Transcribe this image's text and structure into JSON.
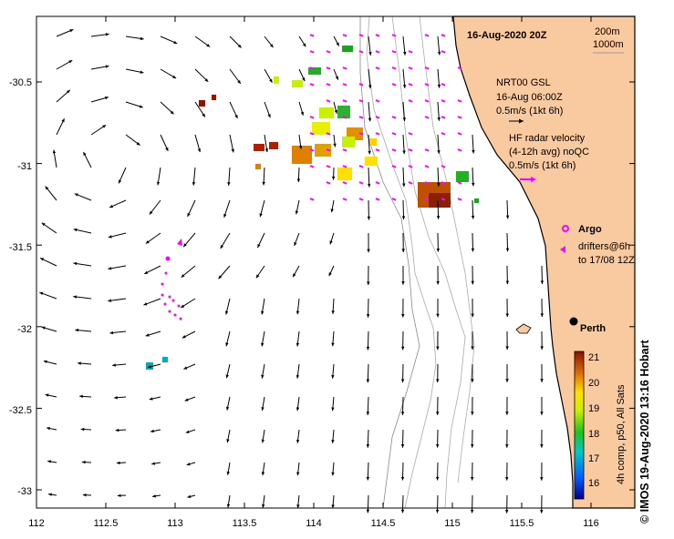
{
  "title": "16-Aug-2020 20Z",
  "isobaths": {
    "a": "200m",
    "b": "1000m"
  },
  "nrt_legend": {
    "line1": "NRT00 GSL",
    "line2": "16-Aug 06:00Z",
    "line3": "0.5m/s (1kt 6h)"
  },
  "hf_legend": {
    "line1": "HF radar velocity",
    "line2": "(4-12h avg) noQC",
    "line3": "0.5m/s (1kt 6h)"
  },
  "argo_label": "Argo",
  "drifters_legend": {
    "line1": "drifters@6h",
    "line2": "to 17/08 12Z"
  },
  "city": "Perth",
  "x_ticks": [
    "112",
    "112.5",
    "113",
    "113.5",
    "114",
    "114.5",
    "115",
    "115.5",
    "116"
  ],
  "y_ticks": [
    "-30.5",
    "-31",
    "-31.5",
    "-32",
    "-32.5",
    "-33"
  ],
  "colorbar": {
    "ticks": [
      "21",
      "20",
      "19",
      "18",
      "17",
      "16"
    ],
    "label": "4h comp, p50, All Sats"
  },
  "credit": "©  IMOS 19-Aug-2020 13:16 Hobart",
  "colors": {
    "land": "#f9c99f",
    "drifter": "#ff00ff",
    "argo": "#ff00ff",
    "coast": "#000000"
  }
}
